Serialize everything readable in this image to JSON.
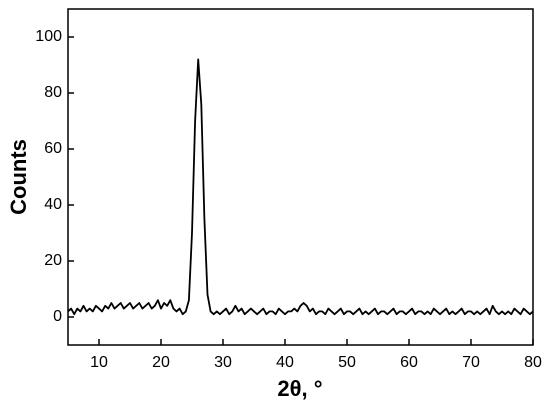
{
  "chart_data": {
    "type": "line",
    "x_label": "2θ, °",
    "y_label": "Counts",
    "xlim": [
      5,
      80
    ],
    "ylim": [
      -10,
      110
    ],
    "xticks": [
      10,
      20,
      30,
      40,
      50,
      60,
      70,
      80
    ],
    "yticks": [
      0,
      20,
      40,
      60,
      80,
      100
    ],
    "series": [
      {
        "color": "#000000",
        "x": [
          5,
          5.5,
          6,
          6.5,
          7,
          7.5,
          8,
          8.5,
          9,
          9.5,
          10,
          10.5,
          11,
          11.5,
          12,
          12.5,
          13,
          13.5,
          14,
          14.5,
          15,
          15.5,
          16,
          16.5,
          17,
          17.5,
          18,
          18.5,
          19,
          19.5,
          20,
          20.5,
          21,
          21.5,
          22,
          22.5,
          23,
          23.5,
          24,
          24.5,
          25,
          25.5,
          26,
          26.5,
          27,
          27.5,
          28,
          28.5,
          29,
          29.5,
          30,
          30.5,
          31,
          31.5,
          32,
          32.5,
          33,
          33.5,
          34,
          34.5,
          35,
          35.5,
          36,
          36.5,
          37,
          37.5,
          38,
          38.5,
          39,
          39.5,
          40,
          40.5,
          41,
          41.5,
          42,
          42.5,
          43,
          43.5,
          44,
          44.5,
          45,
          45.5,
          46,
          46.5,
          47,
          47.5,
          48,
          48.5,
          49,
          49.5,
          50,
          50.5,
          51,
          51.5,
          52,
          52.5,
          53,
          53.5,
          54,
          54.5,
          55,
          55.5,
          56,
          56.5,
          57,
          57.5,
          58,
          58.5,
          59,
          59.5,
          60,
          60.5,
          61,
          61.5,
          62,
          62.5,
          63,
          63.5,
          64,
          64.5,
          65,
          65.5,
          66,
          66.5,
          67,
          67.5,
          68,
          68.5,
          69,
          69.5,
          70,
          70.5,
          71,
          71.5,
          72,
          72.5,
          73,
          73.5,
          74,
          74.5,
          75,
          75.5,
          76,
          76.5,
          77,
          77.5,
          78,
          78.5,
          79,
          79.5,
          80
        ],
        "values": [
          2,
          3,
          1,
          3,
          2,
          4,
          2,
          3,
          2,
          4,
          3,
          2,
          4,
          3,
          5,
          3,
          4,
          5,
          3,
          4,
          5,
          3,
          4,
          5,
          3,
          4,
          5,
          3,
          4,
          6,
          3,
          5,
          4,
          6,
          3,
          2,
          3,
          1,
          2,
          6,
          30,
          70,
          92,
          76,
          35,
          8,
          2,
          1,
          2,
          1,
          2,
          3,
          1,
          2,
          4,
          2,
          3,
          1,
          2,
          3,
          2,
          1,
          2,
          3,
          1,
          2,
          2,
          1,
          3,
          2,
          1,
          2,
          2,
          3,
          2,
          4,
          5,
          4,
          2,
          3,
          1,
          2,
          2,
          1,
          3,
          2,
          1,
          2,
          3,
          1,
          2,
          2,
          1,
          2,
          3,
          1,
          2,
          1,
          2,
          3,
          1,
          2,
          2,
          1,
          2,
          3,
          1,
          2,
          2,
          1,
          2,
          3,
          1,
          2,
          2,
          1,
          2,
          1,
          3,
          2,
          1,
          2,
          3,
          1,
          2,
          1,
          2,
          3,
          1,
          2,
          2,
          1,
          2,
          1,
          2,
          3,
          1,
          4,
          2,
          1,
          2,
          1,
          2,
          1,
          3,
          2,
          1,
          3,
          2,
          1,
          2
        ]
      }
    ]
  }
}
